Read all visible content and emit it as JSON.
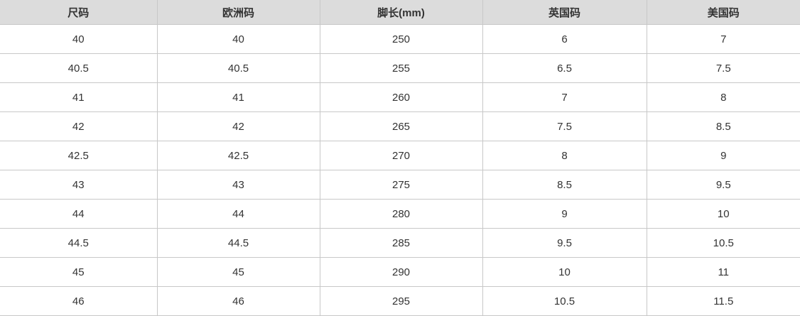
{
  "table": {
    "headers": [
      "尺码",
      "欧洲码",
      "脚长(mm)",
      "英国码",
      "美国码"
    ],
    "rows": [
      [
        "40",
        "40",
        "250",
        "6",
        "7"
      ],
      [
        "40.5",
        "40.5",
        "255",
        "6.5",
        "7.5"
      ],
      [
        "41",
        "41",
        "260",
        "7",
        "8"
      ],
      [
        "42",
        "42",
        "265",
        "7.5",
        "8.5"
      ],
      [
        "42.5",
        "42.5",
        "270",
        "8",
        "9"
      ],
      [
        "43",
        "43",
        "275",
        "8.5",
        "9.5"
      ],
      [
        "44",
        "44",
        "280",
        "9",
        "10"
      ],
      [
        "44.5",
        "44.5",
        "285",
        "9.5",
        "10.5"
      ],
      [
        "45",
        "45",
        "290",
        "10",
        "11"
      ],
      [
        "46",
        "46",
        "295",
        "10.5",
        "11.5"
      ]
    ]
  }
}
